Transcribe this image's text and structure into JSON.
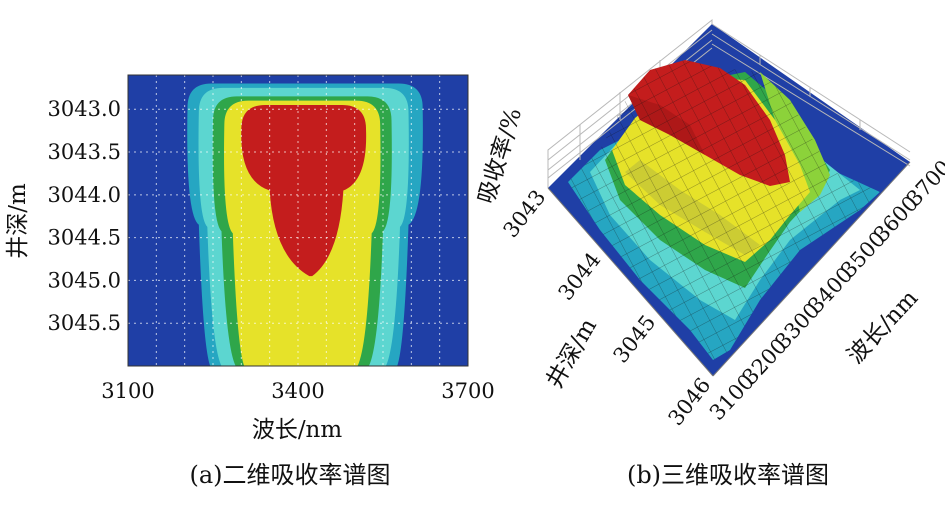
{
  "colors": {
    "background": "#1f3fa6",
    "levels": [
      "#1f3fa6",
      "#26a6c2",
      "#5cd6d0",
      "#2fa64a",
      "#8cd23a",
      "#e6e229",
      "#cccc33",
      "#c41d1d"
    ]
  },
  "chart_data": [
    {
      "panel": "a",
      "type": "heatmap",
      "caption": "(a)二维吸收率谱图",
      "xlabel": "波长/nm",
      "ylabel": "井深/m",
      "xlim": [
        3100,
        3700
      ],
      "ylim": [
        3042.6,
        3046.0
      ],
      "y_inverted": true,
      "grid": true,
      "x_ticks": [
        3100,
        3400,
        3700
      ],
      "x_tick_labels": [
        "3100",
        "3400",
        "3700"
      ],
      "y_ticks": [
        3043.0,
        3043.5,
        3044.0,
        3044.5,
        3045.0,
        3045.5
      ],
      "y_tick_labels": [
        "3043.0",
        "3043.5",
        "3044.0",
        "3044.5",
        "3045.0",
        "3045.5"
      ],
      "contour_levels": [
        {
          "level": 1,
          "color": "#26a6c2",
          "depth_top": 3042.7,
          "depth_bottom": 3046.0,
          "w_top": [
            3205,
            3620
          ],
          "w_mid": [
            3225,
            3595
          ],
          "w_bottom": [
            3245,
            3575
          ]
        },
        {
          "level": 2,
          "color": "#5cd6d0",
          "depth_top": 3042.75,
          "depth_bottom": 3046.0,
          "w_top": [
            3225,
            3595
          ],
          "w_mid": [
            3240,
            3580
          ],
          "w_bottom": [
            3265,
            3555
          ]
        },
        {
          "level": 3,
          "color": "#2fa64a",
          "depth_top": 3042.85,
          "depth_bottom": 3046.0,
          "w_top": [
            3250,
            3565
          ],
          "w_mid": [
            3265,
            3550
          ],
          "w_bottom": [
            3290,
            3525
          ]
        },
        {
          "level": 4,
          "color": "#e6e229",
          "depth_top": 3042.9,
          "depth_bottom": 3046.0,
          "w_top": [
            3270,
            3545
          ],
          "w_mid": [
            3285,
            3530
          ],
          "w_bottom": [
            3305,
            3505
          ]
        },
        {
          "level": 5,
          "color": "#c41d1d",
          "depth_top": 3042.95,
          "depth_bottom": 3044.95,
          "w_top": [
            3300,
            3520
          ],
          "w_mid": [
            3350,
            3480
          ],
          "w_bottom": [
            3420,
            3425
          ]
        }
      ]
    },
    {
      "panel": "b",
      "type": "surface3d",
      "caption": "(b)三维吸收率谱图",
      "xlabel": "波长/nm",
      "ylabel": "井深/m",
      "zlabel": "吸收率/%",
      "xlim": [
        3100,
        3700
      ],
      "ylim": [
        3043,
        3046
      ],
      "x_ticks": [
        3100,
        3200,
        3300,
        3400,
        3500,
        3600,
        3700
      ],
      "x_tick_labels": [
        "3100",
        "3200",
        "3300",
        "3400",
        "3500",
        "3600",
        "3700"
      ],
      "y_ticks": [
        3043,
        3044,
        3045,
        3046
      ],
      "y_tick_labels": [
        "3043",
        "3044",
        "3045",
        "3046"
      ],
      "grid": true
    }
  ]
}
